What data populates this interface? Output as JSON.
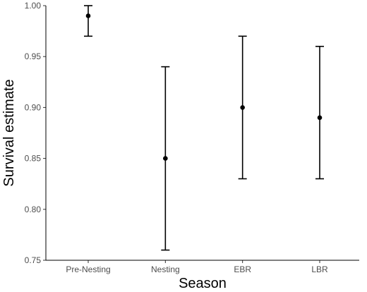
{
  "chart_data": {
    "type": "scatter",
    "title": "",
    "xlabel": "Season",
    "ylabel": "Survival estimate",
    "categories": [
      "Pre-Nesting",
      "Nesting",
      "EBR",
      "LBR"
    ],
    "series": [
      {
        "values": [
          0.99,
          0.85,
          0.9,
          0.89
        ],
        "lower": [
          0.97,
          0.76,
          0.83,
          0.83
        ],
        "upper": [
          1.0,
          0.94,
          0.97,
          0.96
        ]
      }
    ],
    "ylim": [
      0.75,
      1.0
    ],
    "yticks": [
      "0.75",
      "0.80",
      "0.85",
      "0.90",
      "0.95",
      "1.00"
    ],
    "grid": false,
    "legend": "none",
    "colors": {
      "point": "#000000",
      "errorbar": "#000000",
      "axis": "#000000"
    }
  }
}
